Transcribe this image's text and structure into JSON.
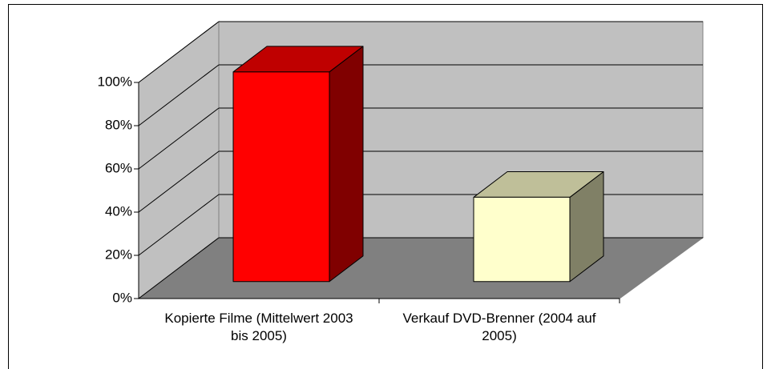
{
  "chart_data": {
    "type": "bar3d",
    "categories": [
      "Kopierte Filme (Mittelwert 2003 bis 2005)",
      "Verkauf DVD-Brenner (2004 auf 2005)"
    ],
    "values": [
      97,
      39
    ],
    "colors": [
      "#ff0000",
      "#ffffcc"
    ],
    "ylim": [
      0,
      100
    ],
    "yticks": [
      {
        "value": 0,
        "label": "0%"
      },
      {
        "value": 20,
        "label": "20%"
      },
      {
        "value": 40,
        "label": "40%"
      },
      {
        "value": 60,
        "label": "60%"
      },
      {
        "value": 80,
        "label": "80%"
      },
      {
        "value": 100,
        "label": "100%"
      }
    ],
    "grid": true
  }
}
